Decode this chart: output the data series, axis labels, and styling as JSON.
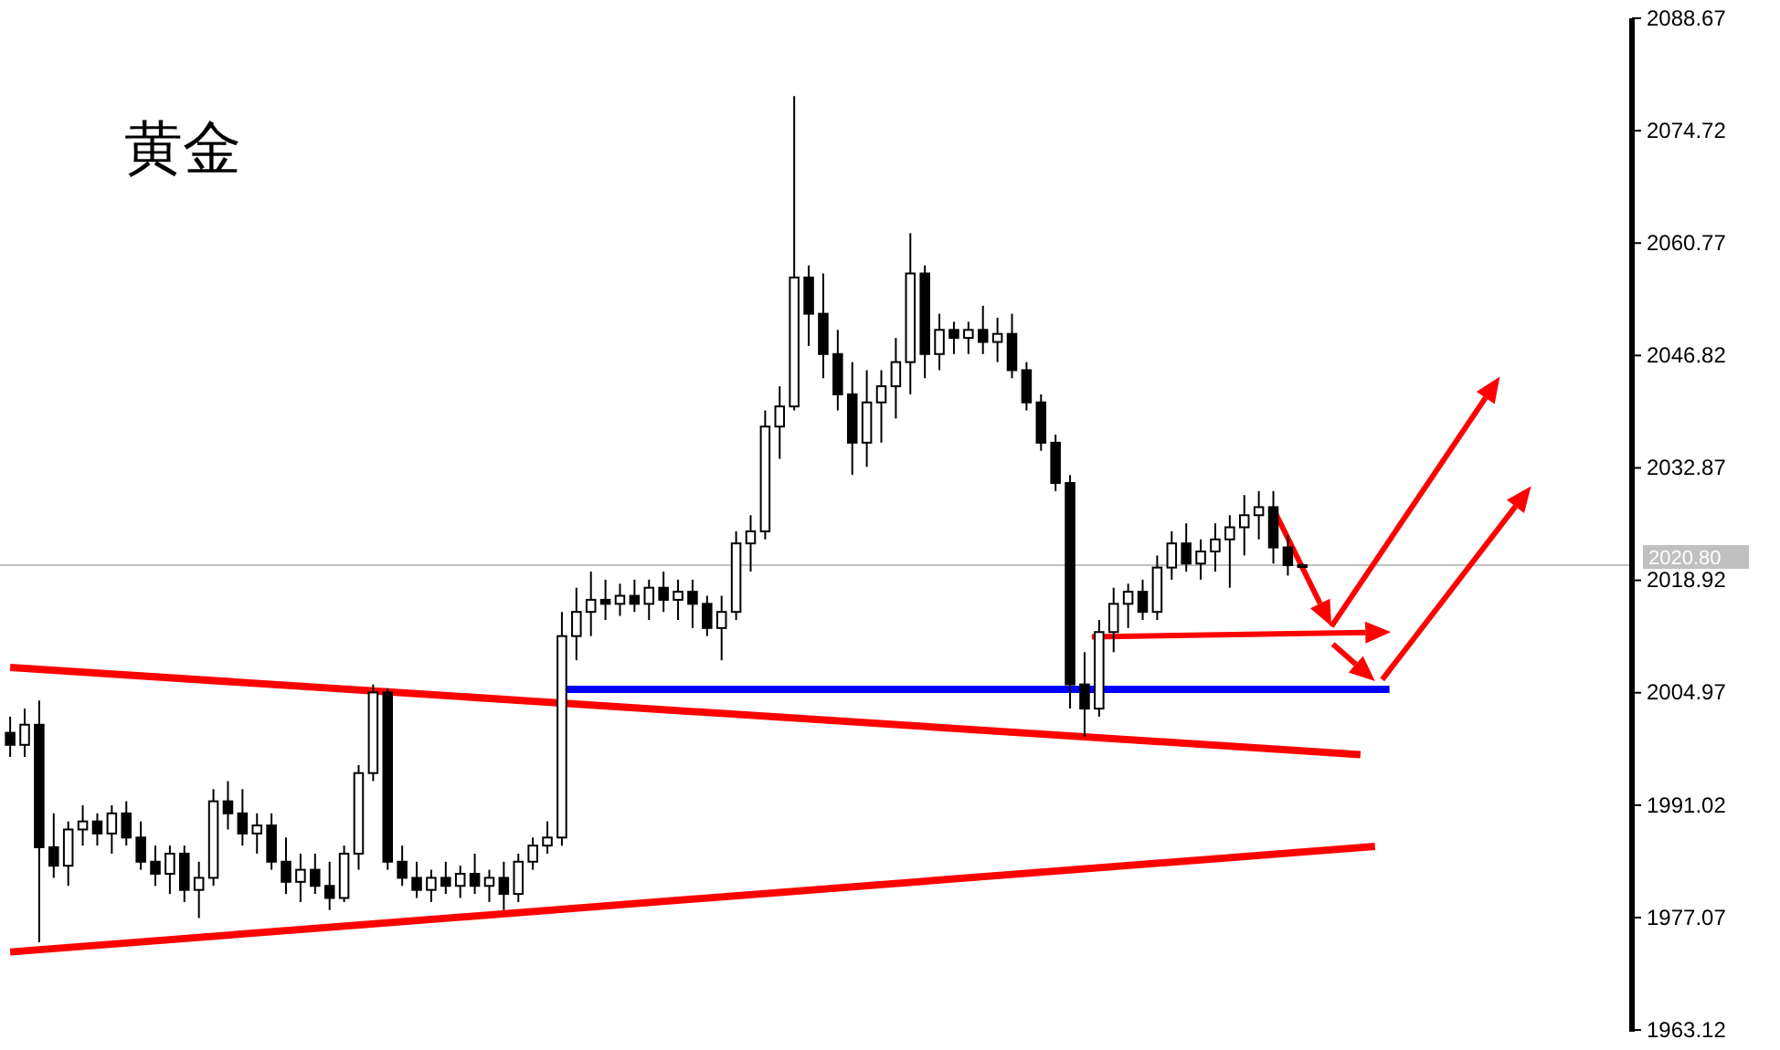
{
  "chart_data": {
    "type": "candlestick",
    "title": "黄金",
    "tick_labels": "y",
    "grid": false,
    "ylim": [
      1962.9,
      2088.67
    ],
    "yticks": [
      1963.12,
      1977.07,
      1991.02,
      2004.97,
      2018.92,
      2032.87,
      2046.82,
      2060.77,
      2074.72,
      2088.67
    ],
    "ref_lines": [
      {
        "axis": "y",
        "value": 2020.8,
        "label": "2020.80",
        "color": "#c0c0c0"
      }
    ],
    "categories": [
      null,
      null,
      null,
      null,
      null,
      null,
      null,
      null,
      null,
      null,
      null,
      null,
      null,
      null,
      null,
      null,
      null,
      null,
      null,
      null,
      null,
      null,
      null,
      null,
      null,
      null,
      null,
      null,
      null,
      null,
      null,
      null,
      null,
      null,
      null,
      null,
      null,
      null,
      null,
      null,
      null,
      null,
      null,
      null,
      null,
      null,
      null,
      null,
      null,
      null,
      null,
      null,
      null,
      null,
      null,
      null,
      null,
      null,
      null,
      null,
      null,
      null,
      null,
      null,
      null,
      null,
      null,
      null,
      null,
      null,
      null,
      null,
      null,
      null,
      null,
      null,
      null,
      null,
      null,
      null,
      null,
      null,
      null,
      null,
      null,
      null,
      null,
      null,
      null,
      null,
      null,
      null,
      null,
      null,
      null,
      null,
      null,
      null,
      null,
      null,
      null,
      null,
      null,
      null,
      null,
      null,
      null,
      null,
      null,
      null,
      null,
      null
    ],
    "ohlc": [
      [
        2000,
        2002,
        1997,
        1998.5
      ],
      [
        1998.5,
        2003,
        1997,
        2001
      ],
      [
        2001,
        2004,
        1974,
        1985.8
      ],
      [
        1985.8,
        1990,
        1982,
        1983.5
      ],
      [
        1983.5,
        1989,
        1981,
        1988
      ],
      [
        1988,
        1991,
        1986,
        1989
      ],
      [
        1989,
        1990,
        1986,
        1987.5
      ],
      [
        1987.5,
        1991,
        1985,
        1990
      ],
      [
        1990,
        1991.5,
        1986,
        1987
      ],
      [
        1987,
        1989,
        1983,
        1984
      ],
      [
        1984,
        1986,
        1981,
        1982.5
      ],
      [
        1982.5,
        1986,
        1980,
        1985
      ],
      [
        1985,
        1986,
        1979,
        1980.5
      ],
      [
        1980.5,
        1984,
        1977,
        1982
      ],
      [
        1982,
        1993,
        1981,
        1991.5
      ],
      [
        1991.5,
        1994,
        1988,
        1990
      ],
      [
        1990,
        1993,
        1986,
        1987.5
      ],
      [
        1987.5,
        1990,
        1985,
        1988.5
      ],
      [
        1988.5,
        1990,
        1983,
        1984
      ],
      [
        1984,
        1987,
        1980,
        1981.5
      ],
      [
        1981.5,
        1985,
        1979,
        1983
      ],
      [
        1983,
        1985,
        1980,
        1981
      ],
      [
        1981,
        1984,
        1978,
        1979.5
      ],
      [
        1979.5,
        1986,
        1979,
        1985
      ],
      [
        1985,
        1996,
        1983,
        1995
      ],
      [
        1995,
        2006,
        1994,
        2005
      ],
      [
        2005,
        2005.5,
        1983,
        1984
      ],
      [
        1984,
        1986,
        1981,
        1982
      ],
      [
        1982,
        1984,
        1979.5,
        1980.5
      ],
      [
        1980.5,
        1983,
        1979,
        1982
      ],
      [
        1982,
        1984,
        1980,
        1981
      ],
      [
        1981,
        1983.5,
        1979.5,
        1982.5
      ],
      [
        1982.5,
        1985,
        1980,
        1981
      ],
      [
        1981,
        1983,
        1979,
        1982
      ],
      [
        1982,
        1984,
        1978,
        1980
      ],
      [
        1980,
        1985,
        1979,
        1984
      ],
      [
        1984,
        1987,
        1983,
        1986
      ],
      [
        1986,
        1989,
        1985,
        1987
      ],
      [
        1987,
        2015,
        1986,
        2012
      ],
      [
        2012,
        2018,
        2009,
        2015
      ],
      [
        2015,
        2020,
        2012,
        2016.5
      ],
      [
        2016.5,
        2019,
        2014,
        2016
      ],
      [
        2016,
        2018.5,
        2014.5,
        2017
      ],
      [
        2017,
        2019,
        2015,
        2016
      ],
      [
        2016,
        2019,
        2014,
        2018
      ],
      [
        2018,
        2020,
        2015,
        2016.5
      ],
      [
        2016.5,
        2019,
        2014,
        2017.5
      ],
      [
        2017.5,
        2019,
        2013,
        2016
      ],
      [
        2016,
        2017,
        2012,
        2013
      ],
      [
        2013,
        2017,
        2009,
        2015
      ],
      [
        2015,
        2025,
        2014,
        2023.5
      ],
      [
        2023.5,
        2027,
        2020,
        2025
      ],
      [
        2025,
        2040,
        2024,
        2038
      ],
      [
        2038,
        2043,
        2034,
        2040.5
      ],
      [
        2040.5,
        2079,
        2040,
        2056.5
      ],
      [
        2056.5,
        2058,
        2048,
        2052
      ],
      [
        2052,
        2057,
        2044,
        2047
      ],
      [
        2047,
        2050,
        2040,
        2042
      ],
      [
        2042,
        2046,
        2032,
        2036
      ],
      [
        2036,
        2045,
        2033,
        2041
      ],
      [
        2041,
        2045,
        2036,
        2043
      ],
      [
        2043,
        2049,
        2039,
        2046
      ],
      [
        2046,
        2062,
        2042,
        2057
      ],
      [
        2057,
        2058,
        2044,
        2047
      ],
      [
        2047,
        2052,
        2045,
        2050
      ],
      [
        2050,
        2051,
        2047,
        2049
      ],
      [
        2049,
        2051,
        2047,
        2050
      ],
      [
        2050,
        2053,
        2047,
        2048.5
      ],
      [
        2048.5,
        2051.5,
        2046,
        2049.5
      ],
      [
        2049.5,
        2052,
        2044,
        2045
      ],
      [
        2045,
        2046,
        2040,
        2041
      ],
      [
        2041,
        2042,
        2035,
        2036
      ],
      [
        2036,
        2037,
        2030,
        2031
      ],
      [
        2031,
        2032,
        2003,
        2006
      ],
      [
        2006,
        2010,
        1999.5,
        2003
      ],
      [
        2003,
        2014,
        2002,
        2012.5
      ],
      [
        2012.5,
        2018,
        2010,
        2016
      ],
      [
        2016,
        2018.5,
        2013,
        2017.5
      ],
      [
        2017.5,
        2019,
        2014,
        2015
      ],
      [
        2015,
        2022,
        2014,
        2020.5
      ],
      [
        2020.5,
        2025,
        2019,
        2023.5
      ],
      [
        2023.5,
        2026,
        2020,
        2021
      ],
      [
        2021,
        2024,
        2019,
        2022.5
      ],
      [
        2022.5,
        2026,
        2020,
        2024
      ],
      [
        2024,
        2027,
        2018,
        2025.5
      ],
      [
        2025.5,
        2029.5,
        2022,
        2027
      ],
      [
        2027,
        2030,
        2024,
        2028
      ],
      [
        2028,
        2030,
        2021,
        2023
      ],
      [
        2023,
        2024.5,
        2019.5,
        2020.8
      ],
      [
        2020.8,
        2021,
        2020.5,
        2020.8
      ],
      null,
      null,
      null,
      null,
      null,
      null,
      null,
      null,
      null,
      null,
      null,
      null,
      null,
      null,
      null,
      null,
      null,
      null,
      null,
      null,
      null,
      null
    ],
    "series": [
      {
        "type": "line",
        "color": "#ff0000",
        "values": [
          2008.1,
          null,
          null,
          null,
          null,
          null,
          null,
          null,
          null,
          null,
          null,
          null,
          null,
          null,
          null,
          null,
          null,
          null,
          null,
          null,
          null,
          null,
          null,
          null,
          null,
          null,
          null,
          null,
          null,
          null,
          null,
          null,
          null,
          null,
          null,
          null,
          null,
          null,
          null,
          null,
          null,
          null,
          null,
          null,
          null,
          null,
          null,
          null,
          null,
          null,
          null,
          null,
          null,
          null,
          null,
          null,
          null,
          null,
          null,
          null,
          null,
          null,
          null,
          null,
          null,
          null,
          null,
          null,
          null,
          null,
          null,
          null,
          null,
          null,
          null,
          null,
          null,
          null,
          null,
          null,
          null,
          null,
          null,
          null,
          null,
          null,
          null,
          null,
          null,
          null,
          null,
          null,
          null,
          1997.3,
          null,
          null,
          null,
          null,
          null,
          null,
          null,
          null,
          null,
          null,
          null,
          null,
          null,
          null,
          null,
          null,
          null,
          null
        ]
      },
      {
        "type": "line",
        "color": "#ff0000",
        "values": [
          1972.8,
          null,
          null,
          null,
          null,
          null,
          null,
          null,
          null,
          null,
          null,
          null,
          null,
          null,
          null,
          null,
          null,
          null,
          null,
          null,
          null,
          null,
          null,
          null,
          null,
          null,
          null,
          null,
          null,
          null,
          null,
          null,
          null,
          null,
          null,
          null,
          null,
          null,
          null,
          null,
          null,
          null,
          null,
          null,
          null,
          null,
          null,
          null,
          null,
          null,
          null,
          null,
          null,
          null,
          null,
          null,
          null,
          null,
          null,
          null,
          null,
          null,
          null,
          null,
          null,
          null,
          null,
          null,
          null,
          null,
          null,
          null,
          null,
          null,
          null,
          null,
          null,
          null,
          null,
          null,
          null,
          null,
          null,
          null,
          null,
          null,
          null,
          null,
          null,
          null,
          null,
          null,
          null,
          null,
          1985.9,
          null,
          null,
          null,
          null,
          null,
          null,
          null,
          null,
          null,
          null,
          null,
          null,
          null,
          null,
          null,
          null,
          null
        ]
      },
      {
        "type": "line",
        "color": "#0000ff",
        "values": [
          null,
          null,
          null,
          null,
          null,
          null,
          null,
          null,
          null,
          null,
          null,
          null,
          null,
          null,
          null,
          null,
          null,
          null,
          null,
          null,
          null,
          null,
          null,
          null,
          null,
          null,
          null,
          null,
          null,
          null,
          null,
          null,
          null,
          null,
          null,
          null,
          null,
          null,
          2005.4,
          null,
          null,
          null,
          null,
          null,
          null,
          null,
          null,
          null,
          null,
          null,
          null,
          null,
          null,
          null,
          null,
          null,
          null,
          null,
          null,
          null,
          null,
          null,
          null,
          null,
          null,
          null,
          null,
          null,
          null,
          null,
          null,
          null,
          null,
          null,
          null,
          null,
          null,
          null,
          null,
          null,
          null,
          null,
          null,
          null,
          null,
          null,
          null,
          null,
          null,
          null,
          null,
          null,
          null,
          null,
          null,
          2005.4,
          null,
          null,
          null,
          null,
          null,
          null,
          null,
          null,
          null,
          null,
          null,
          null,
          null,
          null,
          null,
          null
        ]
      }
    ]
  }
}
